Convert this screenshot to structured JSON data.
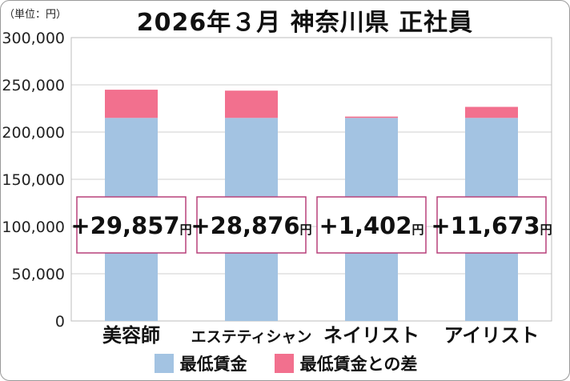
{
  "unit_label": "（単位：円）",
  "chart_data": {
    "type": "bar",
    "stacked": true,
    "title": "2026年３月 神奈川県 正社員",
    "categories": [
      "美容師",
      "エステティシャン",
      "ネイリスト",
      "アイリスト"
    ],
    "series": [
      {
        "name": "最低賃金",
        "values": [
          215000,
          215000,
          215000,
          215000
        ],
        "color": "#a3c3e2"
      },
      {
        "name": "最低賃金との差",
        "values": [
          29857,
          28876,
          1402,
          11673
        ],
        "color": "#f2708e"
      }
    ],
    "difference_labels": [
      "+29,857",
      "+28,876",
      "+1,402",
      "+11,673"
    ],
    "difference_unit": "円",
    "ylim": [
      0,
      300000
    ],
    "yticks": [
      "0",
      "50,000",
      "100,000",
      "150,000",
      "200,000",
      "250,000",
      "300,000"
    ],
    "ytick_values": [
      0,
      50000,
      100000,
      150000,
      200000,
      250000,
      300000
    ],
    "grid": true,
    "legend_position": "bottom"
  }
}
